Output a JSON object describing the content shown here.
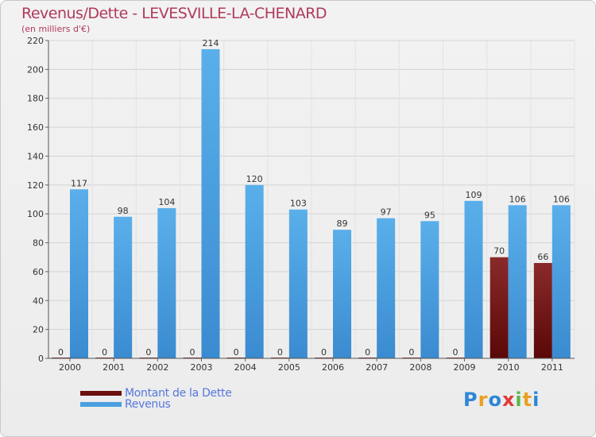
{
  "header": {
    "title": "Revenus/Dette - LEVESVILLE-LA-CHENARD",
    "subtitle": "(en milliers d'€)"
  },
  "chart_data": {
    "type": "bar",
    "categories": [
      "2000",
      "2001",
      "2002",
      "2003",
      "2004",
      "2005",
      "2006",
      "2007",
      "2008",
      "2009",
      "2010",
      "2011"
    ],
    "series": [
      {
        "name": "Montant de la Dette",
        "color": "#7a1a1a",
        "values": [
          0,
          0,
          0,
          0,
          0,
          0,
          0,
          0,
          0,
          0,
          70,
          66
        ]
      },
      {
        "name": "Revenus",
        "color": "#4b9fe0",
        "values": [
          117,
          98,
          104,
          214,
          120,
          103,
          89,
          97,
          95,
          109,
          106,
          106
        ]
      }
    ],
    "ylim": [
      0,
      220
    ],
    "yticks": [
      0,
      20,
      40,
      60,
      80,
      100,
      120,
      140,
      160,
      180,
      200,
      220
    ],
    "grid": true,
    "legend": "bottom-left"
  },
  "legend": {
    "items": [
      {
        "label": "Montant de la Dette",
        "color": "#6b0f0f"
      },
      {
        "label": "Revenus",
        "color": "#4b9fe0"
      }
    ]
  },
  "logo": {
    "letters": [
      "P",
      "r",
      "o",
      "x",
      "i",
      "t",
      "i"
    ],
    "colors": [
      "#2e86d6",
      "#e8a020",
      "#2e86d6",
      "#e23a3a",
      "#58b848",
      "#e8a020",
      "#2e86d6"
    ]
  }
}
